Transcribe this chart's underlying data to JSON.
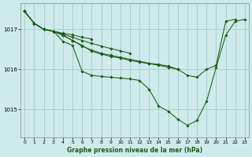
{
  "title": "Graphe pression niveau de la mer (hPa)",
  "background_color": "#ceeaea",
  "line_color": "#1a5c1a",
  "grid_color": "#a8cccc",
  "x_ticks": [
    0,
    1,
    2,
    3,
    4,
    5,
    6,
    7,
    8,
    9,
    10,
    11,
    12,
    13,
    14,
    15,
    16,
    17,
    18,
    19,
    20,
    21,
    22,
    23
  ],
  "y_ticks": [
    1015,
    1016,
    1017
  ],
  "ylim": [
    1014.3,
    1017.65
  ],
  "xlim": [
    -0.4,
    23.4
  ],
  "curves": [
    {
      "x": [
        0,
        1,
        2,
        3,
        4,
        5,
        6,
        7,
        8,
        9,
        10,
        11,
        12,
        13,
        14,
        15,
        16,
        17,
        18,
        19,
        20,
        21,
        22,
        23
      ],
      "y": [
        1017.45,
        1017.15,
        1017.0,
        1016.95,
        1016.7,
        1016.6,
        1015.95,
        1015.85,
        1015.82,
        1015.8,
        1015.78,
        1015.76,
        1015.72,
        1015.5,
        1015.08,
        1014.95,
        1014.75,
        1014.6,
        1014.72,
        1015.2,
        1016.05,
        1016.85,
        1017.2,
        1017.25
      ]
    },
    {
      "x": [
        0,
        1,
        2,
        3,
        4,
        5,
        6,
        7,
        8,
        9,
        10,
        11,
        12,
        13,
        14,
        15,
        16,
        17,
        18,
        19,
        20,
        21,
        22
      ],
      "y": [
        1017.45,
        1017.15,
        1017.0,
        1016.95,
        1016.85,
        1016.72,
        1016.6,
        1016.45,
        1016.38,
        1016.32,
        1016.28,
        1016.22,
        1016.18,
        1016.14,
        1016.1,
        1016.05,
        1016.0,
        1015.85,
        1015.8,
        1016.0,
        1016.1,
        1017.2,
        1017.25
      ]
    },
    {
      "x": [
        0,
        1,
        2,
        3,
        4,
        5,
        6,
        7,
        8,
        9,
        10,
        11,
        12,
        13,
        14,
        15,
        16
      ],
      "y": [
        1017.45,
        1017.15,
        1017.0,
        1016.95,
        1016.85,
        1016.72,
        1016.58,
        1016.48,
        1016.4,
        1016.35,
        1016.3,
        1016.25,
        1016.2,
        1016.15,
        1016.12,
        1016.08,
        1016.0
      ]
    },
    {
      "x": [
        0,
        1,
        2,
        3,
        4,
        5,
        6,
        7,
        8,
        9,
        10,
        11
      ],
      "y": [
        1017.45,
        1017.15,
        1017.0,
        1016.95,
        1016.88,
        1016.8,
        1016.72,
        1016.65,
        1016.58,
        1016.52,
        1016.46,
        1016.4
      ]
    },
    {
      "x": [
        0,
        1,
        2,
        3,
        4,
        5,
        6,
        7
      ],
      "y": [
        1017.45,
        1017.15,
        1017.0,
        1016.95,
        1016.9,
        1016.86,
        1016.8,
        1016.76
      ]
    }
  ]
}
